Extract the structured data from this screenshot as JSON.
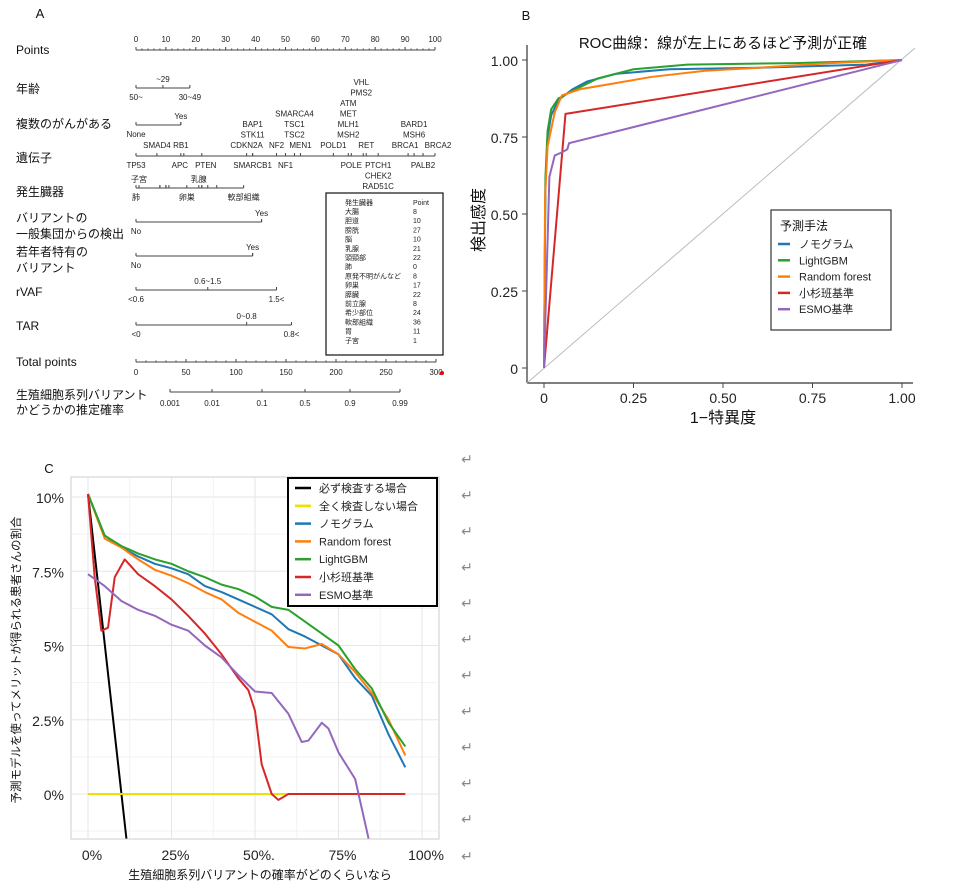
{
  "panel_a": {
    "label": "A",
    "rows": {
      "points": "Points",
      "age": "年齢",
      "multiple_cancers": "複数のがんがある",
      "gene": "遺伝子",
      "organ": "発生臓器",
      "variant_general_1": "バリアントの",
      "variant_general_2": "一般集団からの検出",
      "young_1": "若年者特有の",
      "young_2": "バリアント",
      "rvaf": "rVAF",
      "tar": "TAR",
      "total": "Total points",
      "prob_1": "生殖細胞系列バリアント",
      "prob_2": "かどうかの推定確率"
    },
    "points_ticks": [
      "0",
      "10",
      "20",
      "30",
      "40",
      "50",
      "60",
      "70",
      "80",
      "90",
      "100"
    ],
    "age": {
      "above": [
        {
          "text": "~29",
          "points": 9
        }
      ],
      "below": [
        {
          "text": "50~",
          "points": 0
        },
        {
          "text": "30~49",
          "points": 18
        }
      ],
      "max_points": 18
    },
    "multiple_cancers": {
      "above": [
        {
          "text": "Yes",
          "points": 15
        }
      ],
      "below": [
        {
          "text": "None",
          "points": 0
        }
      ],
      "max_points": 15
    },
    "genes": [
      {
        "labels": [
          "TP53"
        ],
        "points": 0,
        "side": "below"
      },
      {
        "labels": [
          "SMAD4"
        ],
        "points": 7,
        "side": "above"
      },
      {
        "labels": [
          "RB1"
        ],
        "points": 15,
        "side": "above"
      },
      {
        "labels": [
          "APC"
        ],
        "points": 16,
        "side": "below"
      },
      {
        "labels": [
          "PTEN"
        ],
        "points": 22,
        "side": "below"
      },
      {
        "labels": [
          "CDKN2A"
        ],
        "points": 37,
        "side": "above"
      },
      {
        "labels": [
          "BAP1",
          "STK11"
        ],
        "points": 39,
        "side": "above_stack"
      },
      {
        "labels": [
          "SMARCB1"
        ],
        "points": 39,
        "side": "below"
      },
      {
        "labels": [
          "NF2"
        ],
        "points": 47,
        "side": "above"
      },
      {
        "labels": [
          "NF1"
        ],
        "points": 50,
        "side": "below"
      },
      {
        "labels": [
          "SMARCA4",
          "TSC1",
          "TSC2"
        ],
        "points": 53,
        "side": "above_stack"
      },
      {
        "labels": [
          "MEN1"
        ],
        "points": 55,
        "side": "above"
      },
      {
        "labels": [
          "POLD1"
        ],
        "points": 66,
        "side": "above"
      },
      {
        "labels": [
          "ATM",
          "MET",
          "MLH1",
          "MSH2"
        ],
        "points": 71,
        "side": "above_stack"
      },
      {
        "labels": [
          "POLE"
        ],
        "points": 72,
        "side": "below"
      },
      {
        "labels": [
          "VHL",
          "PMS2"
        ],
        "points": 76,
        "side": "above_high"
      },
      {
        "labels": [
          "RET"
        ],
        "points": 77,
        "side": "above"
      },
      {
        "labels": [
          "PTCH1",
          "CHEK2",
          "RAD51C"
        ],
        "points": 81,
        "side": "below_stack"
      },
      {
        "labels": [
          "BRCA1"
        ],
        "points": 91,
        "side": "above"
      },
      {
        "labels": [
          "BARD1",
          "MSH6"
        ],
        "points": 93,
        "side": "above_stack"
      },
      {
        "labels": [
          "PALB2"
        ],
        "points": 96,
        "side": "below"
      },
      {
        "labels": [
          "BRCA2"
        ],
        "points": 100,
        "side": "above"
      }
    ],
    "organ": {
      "above": [
        {
          "text": "子宮",
          "points": 1
        },
        {
          "text": "乳腺",
          "points": 21
        }
      ],
      "below": [
        {
          "text": "肺",
          "points": 0
        },
        {
          "text": "卵巣",
          "points": 17
        },
        {
          "text": "軟部組織",
          "points": 36
        }
      ],
      "max_points": 36
    },
    "variant_general": {
      "above": [
        {
          "text": "Yes",
          "points": 42
        }
      ],
      "below": [
        {
          "text": "No",
          "points": 0
        }
      ],
      "max_points": 42
    },
    "young": {
      "above": [
        {
          "text": "Yes",
          "points": 39
        }
      ],
      "below": [
        {
          "text": "No",
          "points": 0
        }
      ],
      "max_points": 39
    },
    "rvaf": {
      "above": [
        {
          "text": "0.6~1.5",
          "points": 24
        }
      ],
      "below": [
        {
          "text": "<0.6",
          "points": 0
        },
        {
          "text": "1.5<",
          "points": 47
        }
      ],
      "max_points": 47
    },
    "tar": {
      "above": [
        {
          "text": "0~0.8",
          "points": 37
        }
      ],
      "below": [
        {
          "text": "<0",
          "points": 0
        },
        {
          "text": "0.8<",
          "points": 52
        }
      ],
      "max_points": 52
    },
    "total_ticks": [
      "0",
      "50",
      "100",
      "150",
      "200",
      "250",
      "300"
    ],
    "prob_ticks": [
      "0.001",
      "0.01",
      "0.1",
      "0.5",
      "0.9",
      "0.99"
    ],
    "organ_table": {
      "header": [
        "発生臓器",
        "Point"
      ],
      "rows": [
        [
          "大腸",
          "8"
        ],
        [
          "胆道",
          "10"
        ],
        [
          "膀胱",
          "27"
        ],
        [
          "脳",
          "10"
        ],
        [
          "乳腺",
          "21"
        ],
        [
          "頭頸部",
          "22"
        ],
        [
          "肺",
          "0"
        ],
        [
          "原発不明がんなど",
          "8"
        ],
        [
          "卵巣",
          "17"
        ],
        [
          "膵臓",
          "22"
        ],
        [
          "前立腺",
          "8"
        ],
        [
          "希少部位",
          "24"
        ],
        [
          "軟部組織",
          "36"
        ],
        [
          "胃",
          "11"
        ],
        [
          "子宮",
          "1"
        ]
      ]
    }
  },
  "chart_data": [
    {
      "type": "line",
      "panel": "B",
      "title": "ROC曲線：線が左上にあるほど予測が正確",
      "xlabel": "1−特異度",
      "ylabel": "検出感度",
      "xlim": [
        0,
        1
      ],
      "ylim": [
        0,
        1
      ],
      "xticks": [
        "0",
        "0.25",
        "0.50",
        "0.75",
        "1.00"
      ],
      "yticks": [
        "0",
        "0.25",
        "0.50",
        "0.75",
        "1.00"
      ],
      "legend_title": "予測手法",
      "legend_position": "right",
      "grid": false,
      "series": [
        {
          "name": "ノモグラム",
          "color": "#1f77b4",
          "points": [
            [
              0,
              0
            ],
            [
              0.004,
              0.6
            ],
            [
              0.01,
              0.75
            ],
            [
              0.02,
              0.82
            ],
            [
              0.04,
              0.87
            ],
            [
              0.08,
              0.905
            ],
            [
              0.12,
              0.93
            ],
            [
              0.2,
              0.955
            ],
            [
              0.35,
              0.97
            ],
            [
              0.6,
              0.975
            ],
            [
              0.9,
              0.985
            ],
            [
              1,
              1
            ]
          ]
        },
        {
          "name": "LightGBM",
          "color": "#2ca02c",
          "points": [
            [
              0,
              0
            ],
            [
              0.004,
              0.62
            ],
            [
              0.01,
              0.77
            ],
            [
              0.02,
              0.84
            ],
            [
              0.04,
              0.875
            ],
            [
              0.08,
              0.9
            ],
            [
              0.15,
              0.94
            ],
            [
              0.25,
              0.97
            ],
            [
              0.4,
              0.985
            ],
            [
              0.7,
              0.99
            ],
            [
              1,
              1
            ]
          ]
        },
        {
          "name": "Random forest",
          "color": "#ff7f0e",
          "points": [
            [
              0,
              0
            ],
            [
              0.003,
              0.55
            ],
            [
              0.01,
              0.72
            ],
            [
              0.03,
              0.83
            ],
            [
              0.05,
              0.885
            ],
            [
              0.1,
              0.905
            ],
            [
              0.2,
              0.925
            ],
            [
              0.3,
              0.945
            ],
            [
              0.45,
              0.965
            ],
            [
              0.6,
              0.975
            ],
            [
              0.8,
              0.99
            ],
            [
              1,
              1
            ]
          ]
        },
        {
          "name": "小杉班基準",
          "color": "#d62728",
          "points": [
            [
              0,
              0
            ],
            [
              0.06,
              0.825
            ],
            [
              1,
              1
            ]
          ]
        },
        {
          "name": "ESMO基準",
          "color": "#9467bd",
          "points": [
            [
              0,
              0
            ],
            [
              0.015,
              0.62
            ],
            [
              0.03,
              0.69
            ],
            [
              0.05,
              0.7
            ],
            [
              0.065,
              0.71
            ],
            [
              0.07,
              0.73
            ],
            [
              1,
              1
            ]
          ]
        }
      ],
      "reference_line": [
        [
          0,
          0
        ],
        [
          1,
          1
        ]
      ]
    },
    {
      "type": "line",
      "panel": "C",
      "xlabel": "生殖細胞系列バリアントの確率がどのくらいなら",
      "ylabel": "予測モデルを使ってメリットが得られる患者さんの割合",
      "xlim": [
        0,
        100
      ],
      "ylim": [
        -1.5,
        10.5
      ],
      "xticks": [
        "0%",
        "25%",
        "50%.",
        "75%",
        "100%"
      ],
      "yticks": [
        "0%",
        "2.5%",
        "5%",
        "7.5%",
        "10%"
      ],
      "legend_position": "top-right",
      "grid": true,
      "series": [
        {
          "name": "必ず検査する場合",
          "color": "#000000",
          "points": [
            [
              0,
              10.1
            ],
            [
              11.5,
              -1.5
            ]
          ]
        },
        {
          "name": "全く検査しない場合",
          "color": "#f0e000",
          "points": [
            [
              0,
              0
            ],
            [
              95,
              0
            ]
          ]
        },
        {
          "name": "ノモグラム",
          "color": "#1f77b4",
          "points": [
            [
              0,
              10.1
            ],
            [
              5,
              8.7
            ],
            [
              10,
              8.3
            ],
            [
              15,
              8.0
            ],
            [
              20,
              7.75
            ],
            [
              25,
              7.6
            ],
            [
              30,
              7.4
            ],
            [
              35,
              7.0
            ],
            [
              40,
              6.8
            ],
            [
              45,
              6.55
            ],
            [
              50,
              6.3
            ],
            [
              55,
              6.05
            ],
            [
              60,
              5.55
            ],
            [
              65,
              5.3
            ],
            [
              70,
              5.0
            ],
            [
              75,
              4.7
            ],
            [
              80,
              3.9
            ],
            [
              85,
              3.3
            ],
            [
              90,
              2.0
            ],
            [
              95,
              0.9
            ]
          ]
        },
        {
          "name": "Random forest",
          "color": "#ff7f0e",
          "points": [
            [
              0,
              10.1
            ],
            [
              5,
              8.6
            ],
            [
              10,
              8.3
            ],
            [
              15,
              7.9
            ],
            [
              20,
              7.55
            ],
            [
              25,
              7.35
            ],
            [
              30,
              7.1
            ],
            [
              35,
              6.8
            ],
            [
              40,
              6.55
            ],
            [
              45,
              6.1
            ],
            [
              50,
              5.8
            ],
            [
              55,
              5.5
            ],
            [
              60,
              4.95
            ],
            [
              65,
              4.9
            ],
            [
              70,
              5.05
            ],
            [
              75,
              4.7
            ],
            [
              80,
              4.1
            ],
            [
              85,
              3.4
            ],
            [
              90,
              2.5
            ],
            [
              95,
              1.3
            ]
          ]
        },
        {
          "name": "LightGBM",
          "color": "#2ca02c",
          "points": [
            [
              0,
              10.1
            ],
            [
              5,
              8.7
            ],
            [
              10,
              8.35
            ],
            [
              15,
              8.1
            ],
            [
              20,
              7.9
            ],
            [
              25,
              7.75
            ],
            [
              30,
              7.5
            ],
            [
              35,
              7.3
            ],
            [
              40,
              7.05
            ],
            [
              45,
              6.9
            ],
            [
              50,
              6.65
            ],
            [
              55,
              6.3
            ],
            [
              60,
              6.2
            ],
            [
              65,
              5.8
            ],
            [
              70,
              5.4
            ],
            [
              75,
              5.0
            ],
            [
              80,
              4.2
            ],
            [
              85,
              3.55
            ],
            [
              90,
              2.4
            ],
            [
              95,
              1.6
            ]
          ]
        },
        {
          "name": "小杉班基準",
          "color": "#d62728",
          "points": [
            [
              0,
              10.1
            ],
            [
              2,
              7.3
            ],
            [
              4,
              5.5
            ],
            [
              6,
              5.6
            ],
            [
              8,
              7.3
            ],
            [
              11,
              7.9
            ],
            [
              15,
              7.4
            ],
            [
              20,
              7.0
            ],
            [
              25,
              6.55
            ],
            [
              30,
              6.0
            ],
            [
              35,
              5.4
            ],
            [
              40,
              4.7
            ],
            [
              45,
              3.9
            ],
            [
              48,
              3.5
            ],
            [
              50,
              2.8
            ],
            [
              52,
              1.0
            ],
            [
              55,
              0
            ],
            [
              57,
              -0.2
            ],
            [
              60,
              0
            ],
            [
              95,
              0
            ]
          ]
        },
        {
          "name": "ESMO基準",
          "color": "#9467bd",
          "points": [
            [
              0,
              7.4
            ],
            [
              5,
              7.0
            ],
            [
              10,
              6.5
            ],
            [
              15,
              6.2
            ],
            [
              20,
              6.0
            ],
            [
              25,
              5.7
            ],
            [
              30,
              5.5
            ],
            [
              35,
              5.0
            ],
            [
              40,
              4.6
            ],
            [
              45,
              4.0
            ],
            [
              50,
              3.45
            ],
            [
              55,
              3.4
            ],
            [
              60,
              2.7
            ],
            [
              64,
              1.75
            ],
            [
              66,
              1.8
            ],
            [
              70,
              2.4
            ],
            [
              72,
              2.2
            ],
            [
              75,
              1.4
            ],
            [
              80,
              0.5
            ],
            [
              84,
              -1.5
            ]
          ]
        }
      ]
    }
  ],
  "panel_b_label": "B",
  "panel_c_label": "C",
  "paragraph_mark": "↵"
}
